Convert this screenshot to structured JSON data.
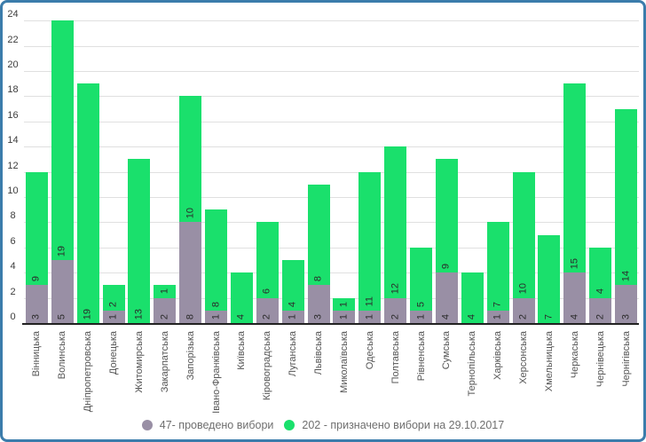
{
  "chart_data": {
    "type": "bar",
    "stacked": true,
    "title": "",
    "xlabel": "",
    "ylabel": "",
    "ylim": [
      0,
      24
    ],
    "ytick_step": 2,
    "yticks": [
      0,
      2,
      4,
      6,
      8,
      10,
      12,
      14,
      16,
      18,
      20,
      22,
      24
    ],
    "grid": true,
    "legend_position": "bottom",
    "categories": [
      "Вінницька",
      "Волинська",
      "Дніпропетровська",
      "Донецька",
      "Житомирська",
      "Закарпатська",
      "Запорізька",
      "Івано-Франківська",
      "Київська",
      "Кіровоградська",
      "Луганська",
      "Львівська",
      "Миколаївська",
      "Одеська",
      "Полтавська",
      "Рівненська",
      "Сумська",
      "Тернопільська",
      "Харківська",
      "Херсонська",
      "Хмельницька",
      "Черкаська",
      "Чернівецька",
      "Чернігівська"
    ],
    "series": [
      {
        "key": "provedeno",
        "name": "проведено вибори",
        "legend_label": "47- проведено вибори",
        "total": 47,
        "color": "#998fa5",
        "values": [
          3,
          5,
          0,
          1,
          0,
          2,
          8,
          1,
          0,
          2,
          1,
          3,
          1,
          1,
          2,
          1,
          4,
          0,
          1,
          2,
          0,
          4,
          2,
          3
        ]
      },
      {
        "key": "pryznacheno",
        "name": "призначено вибори на 29.10.2017",
        "legend_label": "202 - призначено вибори на 29.10.2017",
        "total": 202,
        "color": "#1ae06c",
        "values": [
          9,
          19,
          19,
          2,
          13,
          1,
          10,
          8,
          4,
          6,
          4,
          8,
          1,
          11,
          12,
          5,
          9,
          4,
          7,
          10,
          7,
          15,
          4,
          14
        ]
      }
    ]
  },
  "colors": {
    "border_blue": "#3b7cab",
    "gridline": "#e0e0e0",
    "axis_line": "#222222",
    "bar_purple": "#998fa5",
    "bar_green": "#1ae06c",
    "tick_text": "#3d3d3d",
    "category_text": "#565656",
    "legend_text": "#6f6f6f"
  }
}
